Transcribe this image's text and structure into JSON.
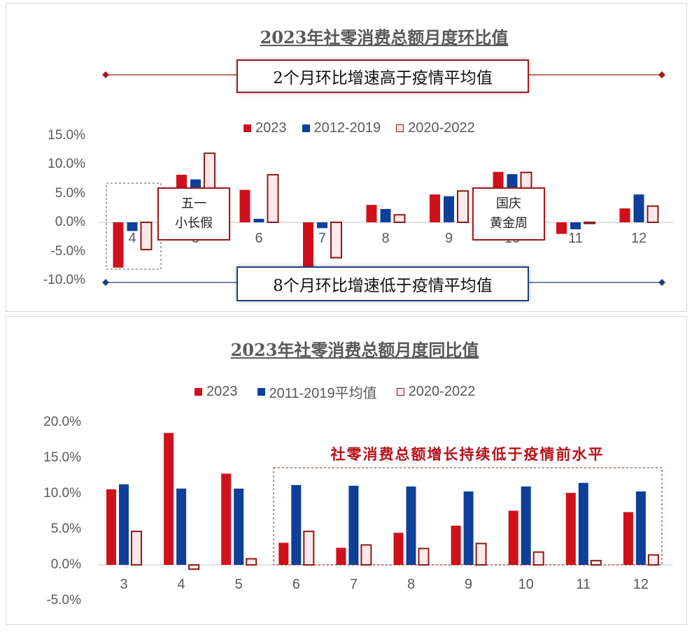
{
  "colors": {
    "red": "#d0111b",
    "blue": "#0e3f99",
    "pink_fill": "#fde9e9",
    "pink_border": "#8b1a1a",
    "gray_text": "#595959"
  },
  "chart_data": [
    {
      "type": "bar",
      "title": "2023年社零消费总额月度环比值",
      "categories": [
        "4",
        "5",
        "6",
        "7",
        "8",
        "9",
        "10",
        "11",
        "12"
      ],
      "series": [
        {
          "name": "2023",
          "values": [
            -7.8,
            8.2,
            5.6,
            -7.6,
            3.0,
            4.8,
            8.7,
            -2.0,
            2.4
          ]
        },
        {
          "name": "2012-2019",
          "values": [
            -1.5,
            7.4,
            0.6,
            -1.0,
            2.3,
            4.5,
            8.3,
            -1.2,
            4.8
          ]
        },
        {
          "name": "2020-2022",
          "values": [
            -4.7,
            11.9,
            8.2,
            -6.1,
            1.3,
            5.4,
            8.6,
            -0.2,
            2.8
          ]
        }
      ],
      "ylim": [
        -10,
        15
      ],
      "yticks": [
        "15.0%",
        "10.0%",
        "5.0%",
        "0.0%",
        "-5.0%",
        "-10.0%"
      ],
      "legend": "top",
      "grid": false,
      "annotations": {
        "top_callout": "2个月环比增速高于疫情平均值",
        "bottom_callout": "8个月环比增速低于疫情平均值",
        "tag_may": [
          "五一",
          "小长假"
        ],
        "tag_oct": [
          "国庆",
          "黄金周"
        ]
      }
    },
    {
      "type": "bar",
      "title": "2023年社零消费总额月度同比值",
      "categories": [
        "3",
        "4",
        "5",
        "6",
        "7",
        "8",
        "9",
        "10",
        "11",
        "12"
      ],
      "series": [
        {
          "name": "2023",
          "values": [
            10.6,
            18.5,
            12.8,
            3.1,
            2.4,
            4.5,
            5.5,
            7.6,
            10.1,
            7.4
          ]
        },
        {
          "name": "2011-2019平均值",
          "values": [
            11.3,
            10.7,
            10.7,
            11.2,
            11.1,
            11.0,
            10.3,
            11.0,
            11.5,
            10.3
          ]
        },
        {
          "name": "2020-2022",
          "values": [
            4.7,
            -0.6,
            0.85,
            4.7,
            2.8,
            2.3,
            3.0,
            1.8,
            0.6,
            1.4
          ]
        }
      ],
      "ylim": [
        -5,
        20
      ],
      "yticks": [
        "20.0%",
        "15.0%",
        "10.0%",
        "5.0%",
        "0.0%",
        "-5.0%"
      ],
      "legend": "top",
      "grid": false,
      "annotations": {
        "highlight": "社零消费总额增长持续低于疫情前水平"
      }
    }
  ]
}
